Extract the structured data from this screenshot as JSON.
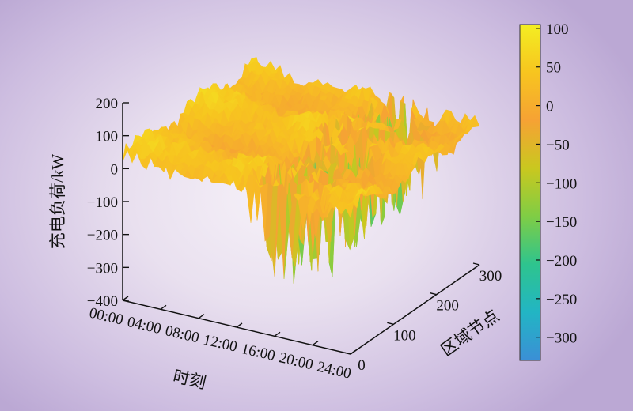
{
  "chart_data": {
    "type": "surface3d",
    "title": "",
    "x_axis": {
      "label": "时刻",
      "ticks": [
        "00:00",
        "04:00",
        "08:00",
        "12:00",
        "16:00",
        "20:00",
        "24:00"
      ],
      "range": [
        0,
        24
      ]
    },
    "y_axis": {
      "label": "区域节点",
      "ticks": [
        "0",
        "100",
        "200",
        "300"
      ],
      "range": [
        0,
        300
      ]
    },
    "z_axis": {
      "label": "充电负荷/kW",
      "ticks": [
        "200",
        "100",
        "0",
        "−100",
        "−200",
        "−300",
        "−400"
      ],
      "range": [
        -400,
        200
      ]
    },
    "colorbar": {
      "ticks": [
        "100",
        "50",
        "0",
        "−50",
        "−100",
        "−150",
        "−200",
        "−250",
        "−300"
      ],
      "range": [
        -330,
        105
      ],
      "colors": [
        "#3b8fd6",
        "#22b5c4",
        "#2ec48e",
        "#7fcd45",
        "#c9c81f",
        "#f6a234",
        "#f7c51f",
        "#f3ee22"
      ]
    },
    "surface_summary": {
      "typical_load_range": [
        0,
        100
      ],
      "min_load_approx": -330,
      "max_load_approx": 100,
      "trough_period": "14:00–20:00"
    }
  }
}
